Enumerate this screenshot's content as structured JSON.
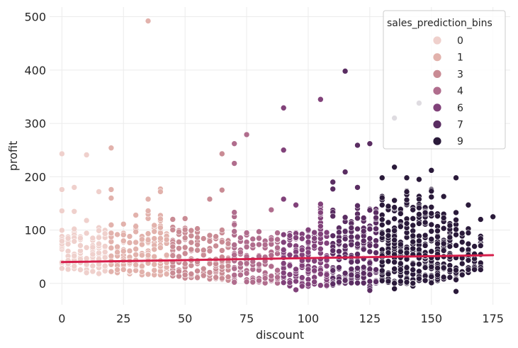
{
  "chart_data": {
    "type": "scatter",
    "xlabel": "discount",
    "ylabel": "profit",
    "xlim": [
      -5,
      182
    ],
    "ylim": [
      -40,
      518
    ],
    "xticks": [
      0,
      25,
      50,
      75,
      100,
      125,
      150,
      175
    ],
    "yticks": [
      0,
      100,
      200,
      300,
      400,
      500
    ],
    "grid": true,
    "legend": {
      "title": "sales_prediction_bins",
      "placement": "top-right",
      "entries": [
        {
          "label": "0",
          "color": "#efd0cc"
        },
        {
          "label": "1",
          "color": "#e2b2ac"
        },
        {
          "label": "3",
          "color": "#c98b94"
        },
        {
          "label": "4",
          "color": "#b06d8d"
        },
        {
          "label": "6",
          "color": "#81427a"
        },
        {
          "label": "7",
          "color": "#5a2d62"
        },
        {
          "label": "9",
          "color": "#2a1a3a"
        }
      ]
    },
    "regression_line": {
      "color": "#d61e4b",
      "x": [
        0,
        175
      ],
      "y": [
        40,
        53
      ]
    },
    "bin_ranges": [
      {
        "bin": "0",
        "x_from": 0,
        "x_to": 20
      },
      {
        "bin": "1",
        "x_from": 20,
        "x_to": 45
      },
      {
        "bin": "3",
        "x_from": 45,
        "x_to": 70
      },
      {
        "bin": "4",
        "x_from": 70,
        "x_to": 90
      },
      {
        "bin": "6",
        "x_from": 90,
        "x_to": 110
      },
      {
        "bin": "7",
        "x_from": 110,
        "x_to": 130
      },
      {
        "bin": "9",
        "x_from": 130,
        "x_to": 175
      }
    ],
    "columns": [
      {
        "x": 0,
        "ymin": 20,
        "ymax": 100
      },
      {
        "x": 2.5,
        "ymin": 22,
        "ymax": 100
      },
      {
        "x": 5,
        "ymin": 20,
        "ymax": 105
      },
      {
        "x": 7.5,
        "ymin": 22,
        "ymax": 100
      },
      {
        "x": 10,
        "ymin": 20,
        "ymax": 100
      },
      {
        "x": 12.5,
        "ymin": 22,
        "ymax": 100
      },
      {
        "x": 15,
        "ymin": 18,
        "ymax": 110
      },
      {
        "x": 17.5,
        "ymin": 20,
        "ymax": 100
      },
      {
        "x": 20,
        "ymin": 22,
        "ymax": 110
      },
      {
        "x": 22.5,
        "ymin": 20,
        "ymax": 100
      },
      {
        "x": 25,
        "ymin": 20,
        "ymax": 115
      },
      {
        "x": 27.5,
        "ymin": 18,
        "ymax": 100
      },
      {
        "x": 30,
        "ymin": 20,
        "ymax": 110
      },
      {
        "x": 32.5,
        "ymin": 15,
        "ymax": 110
      },
      {
        "x": 35,
        "ymin": 15,
        "ymax": 140
      },
      {
        "x": 37.5,
        "ymin": 15,
        "ymax": 110
      },
      {
        "x": 40,
        "ymin": 15,
        "ymax": 135
      },
      {
        "x": 42.5,
        "ymin": 15,
        "ymax": 110
      },
      {
        "x": 45,
        "ymin": 12,
        "ymax": 135
      },
      {
        "x": 47.5,
        "ymin": 12,
        "ymax": 100
      },
      {
        "x": 50,
        "ymin": 10,
        "ymax": 125
      },
      {
        "x": 52.5,
        "ymin": 10,
        "ymax": 100
      },
      {
        "x": 55,
        "ymin": 10,
        "ymax": 105
      },
      {
        "x": 57.5,
        "ymin": 10,
        "ymax": 100
      },
      {
        "x": 60,
        "ymin": 8,
        "ymax": 100
      },
      {
        "x": 62.5,
        "ymin": 8,
        "ymax": 95
      },
      {
        "x": 65,
        "ymin": 5,
        "ymax": 105
      },
      {
        "x": 67.5,
        "ymin": 5,
        "ymax": 95
      },
      {
        "x": 70,
        "ymin": 2,
        "ymax": 140
      },
      {
        "x": 72.5,
        "ymin": 5,
        "ymax": 90
      },
      {
        "x": 75,
        "ymin": 2,
        "ymax": 100
      },
      {
        "x": 77.5,
        "ymin": 2,
        "ymax": 90
      },
      {
        "x": 80,
        "ymin": 2,
        "ymax": 100
      },
      {
        "x": 82.5,
        "ymin": 0,
        "ymax": 90
      },
      {
        "x": 85,
        "ymin": 0,
        "ymax": 100
      },
      {
        "x": 87.5,
        "ymin": 0,
        "ymax": 95
      },
      {
        "x": 90,
        "ymin": -5,
        "ymax": 100
      },
      {
        "x": 92.5,
        "ymin": -5,
        "ymax": 95
      },
      {
        "x": 95,
        "ymin": -10,
        "ymax": 100
      },
      {
        "x": 97.5,
        "ymin": -8,
        "ymax": 95
      },
      {
        "x": 100,
        "ymin": -8,
        "ymax": 110
      },
      {
        "x": 102.5,
        "ymin": -5,
        "ymax": 100
      },
      {
        "x": 105,
        "ymin": -5,
        "ymax": 155
      },
      {
        "x": 107.5,
        "ymin": -5,
        "ymax": 120
      },
      {
        "x": 110,
        "ymin": -5,
        "ymax": 150
      },
      {
        "x": 112.5,
        "ymin": 0,
        "ymax": 120
      },
      {
        "x": 115,
        "ymin": 0,
        "ymax": 145
      },
      {
        "x": 117.5,
        "ymin": 0,
        "ymax": 130
      },
      {
        "x": 120,
        "ymin": -2,
        "ymax": 150
      },
      {
        "x": 122.5,
        "ymin": 0,
        "ymax": 130
      },
      {
        "x": 125,
        "ymin": -15,
        "ymax": 155
      },
      {
        "x": 127.5,
        "ymin": 0,
        "ymax": 140
      },
      {
        "x": 130,
        "ymin": 2,
        "ymax": 170
      },
      {
        "x": 132.5,
        "ymin": 0,
        "ymax": 150
      },
      {
        "x": 135,
        "ymin": 0,
        "ymax": 175
      },
      {
        "x": 137.5,
        "ymin": -5,
        "ymax": 150
      },
      {
        "x": 140,
        "ymin": 0,
        "ymax": 190
      },
      {
        "x": 142.5,
        "ymin": -5,
        "ymax": 150
      },
      {
        "x": 145,
        "ymin": 2,
        "ymax": 170
      },
      {
        "x": 147.5,
        "ymin": 0,
        "ymax": 150
      },
      {
        "x": 150,
        "ymin": 0,
        "ymax": 185
      },
      {
        "x": 152.5,
        "ymin": 5,
        "ymax": 140
      },
      {
        "x": 155,
        "ymin": 8,
        "ymax": 135
      },
      {
        "x": 157.5,
        "ymin": 10,
        "ymax": 120
      },
      {
        "x": 160,
        "ymin": 5,
        "ymax": 150
      },
      {
        "x": 162.5,
        "ymin": 15,
        "ymax": 100
      },
      {
        "x": 165,
        "ymin": 20,
        "ymax": 110
      },
      {
        "x": 167.5,
        "ymin": 25,
        "ymax": 80
      },
      {
        "x": 170,
        "ymin": 25,
        "ymax": 90
      }
    ],
    "outliers": [
      {
        "x": 0,
        "y": 243
      },
      {
        "x": 0,
        "y": 176
      },
      {
        "x": 0,
        "y": 136
      },
      {
        "x": 5,
        "y": 180
      },
      {
        "x": 5,
        "y": 135
      },
      {
        "x": 10,
        "y": 241
      },
      {
        "x": 15,
        "y": 172
      },
      {
        "x": 10,
        "y": 118
      },
      {
        "x": 20,
        "y": 254
      },
      {
        "x": 20,
        "y": 176
      },
      {
        "x": 20,
        "y": 160
      },
      {
        "x": 30,
        "y": 128
      },
      {
        "x": 35,
        "y": 492
      },
      {
        "x": 35,
        "y": 158
      },
      {
        "x": 40,
        "y": 177
      },
      {
        "x": 40,
        "y": 172
      },
      {
        "x": 60,
        "y": 158
      },
      {
        "x": 65,
        "y": 243
      },
      {
        "x": 65,
        "y": 175
      },
      {
        "x": 70,
        "y": 262
      },
      {
        "x": 70,
        "y": 225
      },
      {
        "x": 75,
        "y": 279
      },
      {
        "x": 85,
        "y": 138
      },
      {
        "x": 90,
        "y": 329
      },
      {
        "x": 90,
        "y": 250
      },
      {
        "x": 90,
        "y": 158
      },
      {
        "x": 95,
        "y": 147
      },
      {
        "x": 105,
        "y": 345
      },
      {
        "x": 110,
        "y": 190
      },
      {
        "x": 110,
        "y": 177
      },
      {
        "x": 115,
        "y": 398
      },
      {
        "x": 115,
        "y": 209
      },
      {
        "x": 120,
        "y": 259
      },
      {
        "x": 120,
        "y": 180
      },
      {
        "x": 125,
        "y": 262
      },
      {
        "x": 130,
        "y": 198
      },
      {
        "x": 135,
        "y": 310
      },
      {
        "x": 135,
        "y": 218
      },
      {
        "x": 140,
        "y": 198
      },
      {
        "x": 145,
        "y": 338
      },
      {
        "x": 145,
        "y": 195
      },
      {
        "x": 150,
        "y": 212
      },
      {
        "x": 155,
        "y": 163
      },
      {
        "x": 160,
        "y": 198
      },
      {
        "x": 165,
        "y": 147
      },
      {
        "x": 170,
        "y": 120
      },
      {
        "x": 175,
        "y": 125
      },
      {
        "x": 160,
        "y": -15
      },
      {
        "x": 125,
        "y": -13
      },
      {
        "x": 135,
        "y": -10
      },
      {
        "x": 95,
        "y": -12
      }
    ]
  }
}
